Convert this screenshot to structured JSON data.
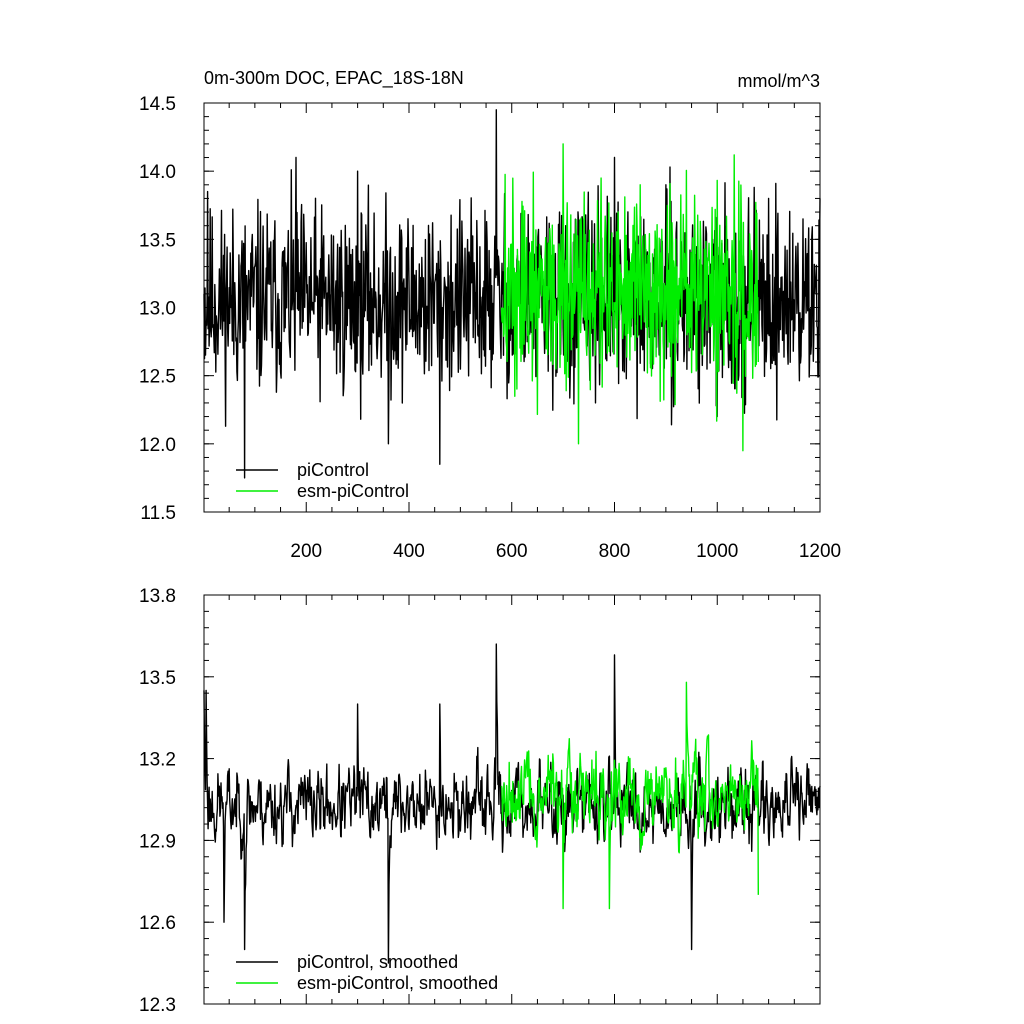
{
  "chart_data": [
    {
      "type": "line",
      "title": "0m-300m DOC, EPAC_18S-18N",
      "units": "mmol/m^3",
      "xlim": [
        1,
        1200
      ],
      "ylim": [
        11.5,
        14.5
      ],
      "yticks": [
        "14.5",
        "14.0",
        "13.5",
        "13.0",
        "12.5",
        "12.0",
        "11.5"
      ],
      "xticks": [
        "200",
        "400",
        "600",
        "800",
        "1000",
        "1200"
      ],
      "legend_position": "bottom-left",
      "series": [
        {
          "name": "piControl",
          "color": "#000000",
          "x_range": [
            1,
            1200
          ],
          "noisy": true,
          "mean": 13.05,
          "spread": 0.42,
          "x": [
            1,
            8,
            80,
            180,
            300,
            360,
            460,
            570,
            800,
            900,
            1000,
            1100,
            1200
          ],
          "y": [
            13.1,
            13.85,
            11.75,
            14.1,
            14.0,
            12.0,
            11.85,
            14.45,
            14.1,
            13.9,
            12.2,
            13.8,
            13.8
          ]
        },
        {
          "name": "esm-piControl",
          "color": "#00ee00",
          "x_range": [
            580,
            1080
          ],
          "noisy": true,
          "mean": 13.1,
          "spread": 0.45,
          "x": [
            580,
            700,
            730,
            850,
            1050,
            1080
          ],
          "y": [
            13.0,
            14.2,
            12.0,
            13.9,
            11.95,
            12.6
          ]
        }
      ]
    },
    {
      "type": "line",
      "xlim": [
        1,
        1200
      ],
      "ylim": [
        12.3,
        13.8
      ],
      "yticks": [
        "13.8",
        "13.5",
        "13.2",
        "12.9",
        "12.6",
        "12.3"
      ],
      "legend_position": "bottom-left",
      "series": [
        {
          "name": "piControl, smoothed",
          "color": "#000000",
          "x_range": [
            1,
            1200
          ],
          "noisy": true,
          "mean": 13.03,
          "spread": 0.16,
          "x": [
            1,
            5,
            40,
            80,
            300,
            360,
            460,
            570,
            800,
            950,
            1200
          ],
          "y": [
            13.45,
            13.45,
            12.6,
            12.5,
            13.4,
            12.45,
            13.4,
            13.62,
            13.58,
            12.5,
            13.1
          ]
        },
        {
          "name": "esm-piControl, smoothed",
          "color": "#00ee00",
          "x_range": [
            580,
            1080
          ],
          "noisy": true,
          "mean": 13.07,
          "spread": 0.17,
          "x": [
            580,
            700,
            790,
            940,
            1080
          ],
          "y": [
            13.1,
            12.65,
            12.65,
            13.48,
            12.7
          ]
        }
      ]
    }
  ]
}
